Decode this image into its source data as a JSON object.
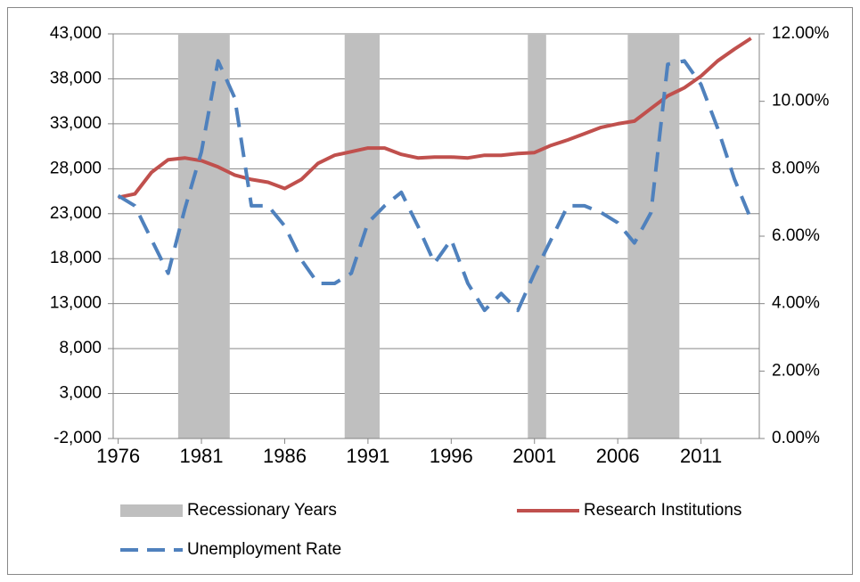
{
  "chart_data": {
    "type": "line",
    "x": [
      1976,
      1977,
      1978,
      1979,
      1980,
      1981,
      1982,
      1983,
      1984,
      1985,
      1986,
      1987,
      1988,
      1989,
      1990,
      1991,
      1992,
      1993,
      1994,
      1995,
      1996,
      1997,
      1998,
      1999,
      2000,
      2001,
      2002,
      2003,
      2004,
      2005,
      2006,
      2007,
      2008,
      2009,
      2010,
      2011,
      2012,
      2013,
      2014
    ],
    "xlim": [
      1975.7,
      2014.5
    ],
    "xticks": [
      1976,
      1981,
      1986,
      1991,
      1996,
      2001,
      2006,
      2011
    ],
    "ylim": [
      -2000,
      43000
    ],
    "yticks": [
      {
        "value": -2000,
        "label": "-2,000"
      },
      {
        "value": 3000,
        "label": "3,000"
      },
      {
        "value": 8000,
        "label": "8,000"
      },
      {
        "value": 13000,
        "label": "13,000"
      },
      {
        "value": 18000,
        "label": "18,000"
      },
      {
        "value": 23000,
        "label": "23,000"
      },
      {
        "value": 28000,
        "label": "28,000"
      },
      {
        "value": 33000,
        "label": "33,000"
      },
      {
        "value": 38000,
        "label": "38,000"
      },
      {
        "value": 43000,
        "label": "43,000"
      }
    ],
    "y2lim": [
      0,
      12
    ],
    "y2ticks": [
      {
        "value": 0,
        "label": "0.00%"
      },
      {
        "value": 2,
        "label": "2.00%"
      },
      {
        "value": 4,
        "label": "4.00%"
      },
      {
        "value": 6,
        "label": "6.00%"
      },
      {
        "value": 8,
        "label": "8.00%"
      },
      {
        "value": 10,
        "label": "10.00%"
      },
      {
        "value": 12,
        "label": "12.00%"
      }
    ],
    "grid": true,
    "recessions": {
      "name": "Recessionary Years",
      "color": "#bfbfbf",
      "ranges": [
        [
          1979.6,
          1982.7
        ],
        [
          1989.6,
          1991.7
        ],
        [
          2000.6,
          2001.7
        ],
        [
          2006.6,
          2009.7
        ]
      ]
    },
    "series": [
      {
        "name": "Research Institutions",
        "color": "#c0504d",
        "values": [
          24800,
          25200,
          27600,
          29000,
          29200,
          28900,
          28200,
          27300,
          26800,
          26500,
          25800,
          26800,
          28600,
          29500,
          29900,
          30300,
          30300,
          29600,
          29200,
          29300,
          29300,
          29200,
          29500,
          29500,
          29700,
          29800,
          30600,
          31200,
          31900,
          32600,
          33000,
          33300,
          34700,
          36100,
          37000,
          38300,
          40000,
          41300,
          42500
        ]
      },
      {
        "name": "Unemployment Rate",
        "color": "#4f81bd",
        "axis": "y2",
        "values": [
          7.2,
          6.9,
          5.9,
          4.9,
          6.8,
          8.5,
          11.2,
          10.1,
          6.9,
          6.9,
          6.3,
          5.3,
          4.6,
          4.6,
          4.9,
          6.4,
          6.9,
          7.3,
          6.3,
          5.2,
          5.9,
          4.6,
          3.8,
          4.3,
          3.8,
          4.9,
          5.9,
          6.9,
          6.9,
          6.7,
          6.4,
          5.8,
          6.7,
          11.1,
          11.2,
          10.5,
          9.2,
          7.7,
          6.5
        ]
      }
    ]
  }
}
